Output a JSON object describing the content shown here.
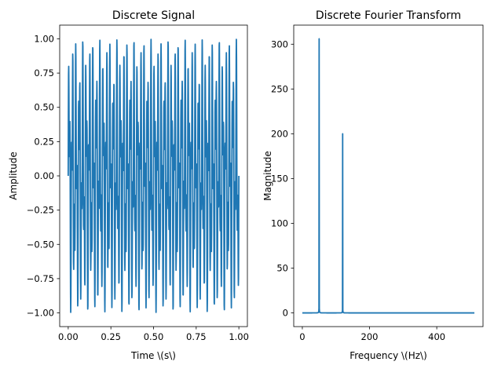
{
  "chart_data": [
    {
      "type": "line",
      "title": "Discrete Signal",
      "xlabel": "Time \\(s\\)",
      "ylabel": "Amplitude",
      "xlim": [
        -0.05,
        1.05
      ],
      "ylim": [
        -1.1,
        1.1
      ],
      "xticks": [
        0.0,
        0.25,
        0.5,
        0.75,
        1.0
      ],
      "xtick_labels": [
        "0.00",
        "0.25",
        "0.50",
        "0.75",
        "1.00"
      ],
      "yticks": [
        -1.0,
        -0.75,
        -0.5,
        -0.25,
        0.0,
        0.25,
        0.5,
        0.75,
        1.0
      ],
      "ytick_labels": [
        "−1.00",
        "−0.75",
        "−0.50",
        "−0.25",
        "0.00",
        "0.25",
        "0.50",
        "0.75",
        "1.00"
      ],
      "grid": false,
      "series": [
        {
          "color": "#1f77b4",
          "signal": "0.6*sin(2*pi*50*t) + 0.4*sin(2*pi*120*t)",
          "sample_rate_hz": 1024,
          "t_start": 0,
          "t_end": 1,
          "amplitude_range": [
            -1.0,
            1.0
          ]
        }
      ]
    },
    {
      "type": "line",
      "title": "Discrete Fourier Transform",
      "xlabel": "Frequency \\(Hz\\)",
      "ylabel": "Magnitude",
      "xlim": [
        -25.6,
        537.6
      ],
      "ylim": [
        -15.3,
        321.3
      ],
      "xticks": [
        0,
        200,
        400
      ],
      "xtick_labels": [
        "0",
        "200",
        "400"
      ],
      "yticks": [
        0,
        50,
        100,
        150,
        200,
        250,
        300
      ],
      "ytick_labels": [
        "0",
        "50",
        "100",
        "150",
        "200",
        "250",
        "300"
      ],
      "grid": false,
      "series": [
        {
          "color": "#1f77b4",
          "frequency_range": [
            0,
            512
          ],
          "peaks": [
            {
              "x": 50,
              "y": 306
            },
            {
              "x": 120,
              "y": 200
            }
          ],
          "baseline": 0
        }
      ]
    }
  ]
}
